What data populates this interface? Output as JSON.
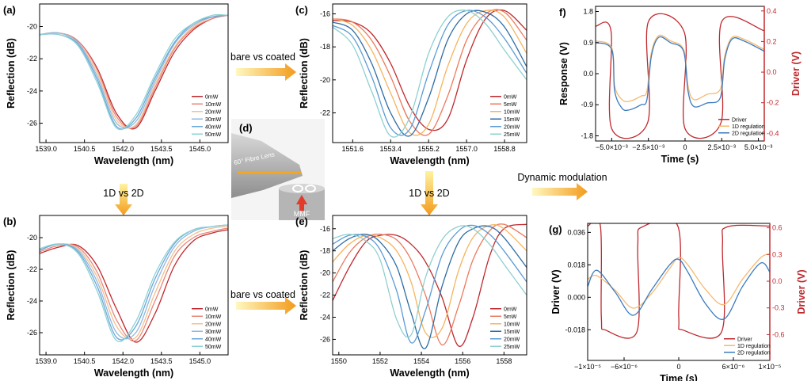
{
  "chart_data": [
    {
      "type": "line",
      "label": "(a)",
      "xlabel": "Wavelength (nm)",
      "ylabel": "Reflection (dB)",
      "legend": "lower right",
      "x": [
        1538.75,
        1539.5,
        1540.25,
        1541,
        1541.75,
        1542.5,
        1543.25,
        1544,
        1544.75,
        1545.5,
        1546.1
      ],
      "xlim": [
        1538.75,
        1546.1
      ],
      "ylim": [
        -27.2,
        -18.6
      ],
      "xticks": [
        {
          "value": 1539,
          "label": "1539.0"
        },
        1540.5,
        {
          "value": 1542,
          "label": "1542.0"
        },
        1543.5,
        {
          "value": 1545,
          "label": "1545.0"
        }
      ],
      "yticks": [
        -26,
        -24,
        -22,
        -20
      ],
      "series": [
        {
          "name": "0mW",
          "color": "#c0282d",
          "values": [
            -20.5,
            -20.4,
            -20.9,
            -22.6,
            -25.4,
            -26.3,
            -24.0,
            -21.6,
            -20.2,
            -19.5,
            -19.3
          ]
        },
        {
          "name": "10mW",
          "color": "#e8867a",
          "values": [
            -20.5,
            -20.4,
            -20.9,
            -22.7,
            -25.6,
            -26.2,
            -23.8,
            -21.4,
            -20.1,
            -19.5,
            -19.3
          ]
        },
        {
          "name": "20mW",
          "color": "#f5c08e",
          "values": [
            -20.5,
            -20.4,
            -21.0,
            -22.9,
            -25.8,
            -26.1,
            -23.6,
            -21.3,
            -20.0,
            -19.4,
            -19.3
          ]
        },
        {
          "name": "30mW",
          "color": "#8fb9e0",
          "values": [
            -20.5,
            -20.4,
            -21.0,
            -23.1,
            -26.0,
            -25.9,
            -23.4,
            -21.1,
            -19.9,
            -19.4,
            -19.3
          ]
        },
        {
          "name": "40mW",
          "color": "#6aa6d8",
          "values": [
            -20.5,
            -20.5,
            -21.1,
            -23.3,
            -26.2,
            -25.7,
            -23.2,
            -21.0,
            -19.8,
            -19.4,
            -19.3
          ]
        },
        {
          "name": "50mW",
          "color": "#8dd2d6",
          "values": [
            -20.5,
            -20.5,
            -21.2,
            -23.5,
            -26.3,
            -25.5,
            -23.0,
            -20.8,
            -19.8,
            -19.3,
            -19.3
          ]
        }
      ]
    },
    {
      "type": "line",
      "label": "(b)",
      "xlabel": "Wavelength (nm)",
      "ylabel": "Reflection (dB)",
      "legend": "lower right",
      "x": [
        1538.75,
        1539.5,
        1540.25,
        1541,
        1541.75,
        1542.5,
        1543.25,
        1544,
        1544.75,
        1545.5,
        1546.1
      ],
      "xlim": [
        1538.75,
        1546.1
      ],
      "ylim": [
        -27.4,
        -18.6
      ],
      "xticks": [
        {
          "value": 1539,
          "label": "1539.0"
        },
        1540.5,
        {
          "value": 1542,
          "label": "1542.0"
        },
        1543.5,
        {
          "value": 1545,
          "label": "1545.0"
        }
      ],
      "yticks": [
        -26,
        -24,
        -22,
        -20
      ],
      "series": [
        {
          "name": "0mW",
          "color": "#c0282d",
          "values": [
            -21.0,
            -20.6,
            -20.5,
            -21.8,
            -24.5,
            -26.6,
            -24.8,
            -21.8,
            -20.2,
            -19.7,
            -19.5
          ]
        },
        {
          "name": "10mW",
          "color": "#e8867a",
          "values": [
            -20.9,
            -20.5,
            -20.6,
            -22.2,
            -25.2,
            -26.5,
            -24.0,
            -21.2,
            -20.0,
            -19.6,
            -19.4
          ]
        },
        {
          "name": "20mW",
          "color": "#f5c08e",
          "values": [
            -20.8,
            -20.4,
            -20.7,
            -22.5,
            -25.6,
            -26.3,
            -23.5,
            -20.9,
            -19.8,
            -19.4,
            -19.3
          ]
        },
        {
          "name": "30mW",
          "color": "#8fb9e0",
          "values": [
            -20.8,
            -20.4,
            -20.8,
            -22.8,
            -26.0,
            -26.0,
            -23.0,
            -20.6,
            -19.6,
            -19.3,
            -19.2
          ]
        },
        {
          "name": "40mW",
          "color": "#6aa6d8",
          "values": [
            -20.8,
            -20.4,
            -20.9,
            -23.1,
            -26.3,
            -25.6,
            -22.6,
            -20.4,
            -19.5,
            -19.3,
            -19.2
          ]
        },
        {
          "name": "50mW",
          "color": "#8dd2d6",
          "values": [
            -20.7,
            -20.4,
            -21.0,
            -23.4,
            -26.5,
            -25.3,
            -22.3,
            -20.3,
            -19.5,
            -19.3,
            -19.2
          ]
        }
      ]
    },
    {
      "type": "line",
      "label": "(c)",
      "xlabel": "Wavelength (nm)",
      "ylabel": "Reflection (dB)",
      "legend": "lower right",
      "x": [
        1550.65,
        1551.6,
        1552.5,
        1553.4,
        1554.3,
        1555.2,
        1556.1,
        1557.0,
        1557.9,
        1558.8,
        1559.85
      ],
      "xlim": [
        1550.65,
        1559.85
      ],
      "ylim": [
        -23.8,
        -15.4
      ],
      "xticks": [
        1551.6,
        1553.4,
        1555.2,
        {
          "value": 1557,
          "label": "1557.0"
        },
        1558.8
      ],
      "yticks": [
        -22,
        -20,
        -18,
        -16
      ],
      "series": [
        {
          "name": "0mW",
          "color": "#c0282d",
          "values": [
            -16.4,
            -16.5,
            -17.2,
            -19.0,
            -21.6,
            -23.0,
            -22.4,
            -18.8,
            -16.3,
            -15.8,
            -17.0
          ]
        },
        {
          "name": "5mW",
          "color": "#ec7a5e",
          "values": [
            -16.3,
            -16.5,
            -17.6,
            -19.8,
            -22.5,
            -23.3,
            -21.0,
            -17.6,
            -16.0,
            -15.9,
            -17.6
          ]
        },
        {
          "name": "10mW",
          "color": "#f5b45e",
          "values": [
            -16.3,
            -16.7,
            -18.2,
            -20.8,
            -23.2,
            -22.7,
            -19.2,
            -16.6,
            -15.8,
            -16.2,
            -18.4
          ]
        },
        {
          "name": "15mW",
          "color": "#2e6ca4",
          "values": [
            -16.5,
            -17.0,
            -19.0,
            -22.0,
            -23.4,
            -21.1,
            -17.6,
            -16.0,
            -15.9,
            -16.8,
            -19.2
          ]
        },
        {
          "name": "20mW",
          "color": "#5b9bd5",
          "values": [
            -16.7,
            -17.4,
            -19.8,
            -22.9,
            -23.0,
            -19.6,
            -16.7,
            -15.8,
            -16.2,
            -17.5,
            -19.6
          ]
        },
        {
          "name": "25mW",
          "color": "#8fd0cf",
          "values": [
            -16.8,
            -17.9,
            -20.7,
            -23.4,
            -22.3,
            -18.4,
            -16.2,
            -15.8,
            -16.6,
            -18.2,
            -20.0
          ]
        }
      ]
    },
    {
      "type": "line",
      "label": "(e)",
      "xlabel": "Wavelength (nm)",
      "ylabel": "Reflection (dB)",
      "legend": "lower right",
      "x": [
        1549.7,
        1550.5,
        1551.3,
        1552,
        1552.8,
        1553.5,
        1554.2,
        1555,
        1555.8,
        1556.5,
        1557.3,
        1558,
        1559.1
      ],
      "xlim": [
        1549.7,
        1559.1
      ],
      "ylim": [
        -27.4,
        -14.8
      ],
      "xticks": [
        1550,
        1552,
        1554,
        1556,
        1558
      ],
      "yticks": [
        -26,
        -24,
        -22,
        -20,
        -18,
        -16
      ],
      "series": [
        {
          "name": "0mW",
          "color": "#c0282d",
          "values": [
            -22.5,
            -19.5,
            -17.2,
            -16.6,
            -16.6,
            -17.4,
            -19.0,
            -22.2,
            -26.6,
            -24.0,
            -18.5,
            -16.0,
            -15.6
          ]
        },
        {
          "name": "5mW",
          "color": "#ec7a5e",
          "values": [
            -20.8,
            -18.2,
            -16.8,
            -16.5,
            -17.0,
            -18.8,
            -22.0,
            -26.5,
            -23.0,
            -18.8,
            -16.2,
            -15.6,
            -16.8
          ]
        },
        {
          "name": "10mW",
          "color": "#f5b45e",
          "values": [
            -19.0,
            -17.4,
            -16.6,
            -16.8,
            -18.0,
            -20.8,
            -25.4,
            -25.0,
            -19.8,
            -16.8,
            -15.7,
            -16.0,
            -18.0
          ]
        },
        {
          "name": "15mW",
          "color": "#2e6ca4",
          "values": [
            -18.0,
            -16.9,
            -16.5,
            -17.2,
            -19.4,
            -23.6,
            -26.8,
            -21.2,
            -17.2,
            -16.0,
            -15.8,
            -16.8,
            -19.5
          ]
        },
        {
          "name": "20mW",
          "color": "#5b9bd5",
          "values": [
            -17.4,
            -16.6,
            -16.7,
            -17.9,
            -21.6,
            -26.3,
            -23.4,
            -18.4,
            -16.2,
            -15.7,
            -16.5,
            -18.0,
            -20.8
          ]
        },
        {
          "name": "25mW",
          "color": "#8fd0cf",
          "values": [
            -16.9,
            -16.5,
            -17.1,
            -18.8,
            -24.2,
            -25.6,
            -20.4,
            -17.0,
            -15.8,
            -16.0,
            -17.4,
            -19.2,
            -22.0
          ]
        }
      ]
    },
    {
      "type": "line",
      "label": "f)",
      "xlabel": "Time (s)",
      "ylabel": "Response (V)",
      "y2label": "Driver (V)",
      "legend": "lower right",
      "xlim": [
        -0.0061,
        0.0054
      ],
      "ylim": [
        -1.95,
        1.95
      ],
      "y2lim": [
        -0.45,
        0.43
      ],
      "xticks": [
        {
          "value": -0.005,
          "label": "−5.0×10⁻³"
        },
        {
          "value": -0.0025,
          "label": "−2.5×10⁻³"
        },
        0,
        {
          "value": 0.0025,
          "label": "2.5×10⁻³"
        },
        {
          "value": 0.005,
          "label": "5.0×10⁻³"
        }
      ],
      "yticks": [
        -1.8,
        -0.9,
        {
          "value": 0,
          "label": "0.0"
        },
        0.9,
        1.8
      ],
      "y2ticks": [
        -0.4,
        -0.2,
        {
          "value": 0,
          "label": "0.0"
        },
        0.2,
        0.4
      ],
      "series": [
        {
          "name": "Driver",
          "color": "#c0282d",
          "axis": "y2",
          "x": [
            -0.0061,
            -0.00505,
            -0.005,
            -0.00255,
            -0.0025,
            -5e-05,
            0,
            0.00245,
            0.0025,
            0.0054
          ],
          "values": [
            0.3,
            0.27,
            -0.37,
            -0.33,
            0.33,
            0.26,
            -0.37,
            -0.33,
            0.33,
            0.27
          ]
        },
        {
          "name": "1D regulation",
          "color": "#f5b971",
          "x": [
            -0.0061,
            -0.005,
            -0.0048,
            -0.0043,
            -0.0038,
            -0.003,
            -0.0026,
            -0.0023,
            -0.0018,
            -0.001,
            -0.0001,
            0.0002,
            0.0006,
            0.0015,
            0.0024,
            0.0027,
            0.0032,
            0.004,
            0.0054
          ],
          "values": [
            0.95,
            0.75,
            -0.35,
            -0.75,
            -0.8,
            -0.65,
            -0.5,
            0.6,
            1.1,
            0.95,
            0.7,
            -0.35,
            -0.75,
            -0.6,
            -0.45,
            0.5,
            1.05,
            1.0,
            0.7
          ]
        },
        {
          "name": "2D regulation",
          "color": "#3b7bbf",
          "x": [
            -0.0061,
            -0.005,
            -0.0048,
            -0.0043,
            -0.0038,
            -0.003,
            -0.0026,
            -0.0023,
            -0.0018,
            -0.001,
            -0.0001,
            0.0002,
            0.0006,
            0.0015,
            0.0024,
            0.0027,
            0.0032,
            0.004,
            0.0054
          ],
          "values": [
            0.9,
            0.7,
            -0.5,
            -1.0,
            -1.05,
            -0.9,
            -0.75,
            0.5,
            1.05,
            0.9,
            0.65,
            -0.5,
            -0.95,
            -0.85,
            -0.7,
            0.4,
            1.0,
            0.95,
            0.65
          ]
        }
      ]
    },
    {
      "type": "line",
      "label": "(g)",
      "xlabel": "Time (s)",
      "ylabel": "Driver (V)",
      "y2label": "Driver (V)",
      "legend": "lower right",
      "xlim": [
        -1e-05,
        1e-05
      ],
      "ylim": [
        -0.035,
        0.041
      ],
      "y2lim": [
        -0.89,
        0.65
      ],
      "xticks": [
        {
          "value": -1e-05,
          "label": "−1×10⁻⁵"
        },
        {
          "value": -6e-06,
          "label": "−6×10⁻⁶"
        },
        0,
        {
          "value": 6e-06,
          "label": "6×10⁻⁶"
        },
        {
          "value": 1e-05,
          "label": "1×10⁻⁵"
        }
      ],
      "yticks": [
        -0.018,
        {
          "value": 0,
          "label": "0.000"
        },
        0.018,
        0.036
      ],
      "y2ticks": [
        -0.6,
        -0.3,
        {
          "value": 0,
          "label": "0.0"
        },
        0.3,
        0.6
      ],
      "series": [
        {
          "name": "Driver",
          "color": "#c0282d",
          "axis": "y2",
          "x": [
            -1e-05,
            -8.6e-06,
            -8.5e-06,
            -8e-06,
            -4.6e-06,
            -4.5e-06,
            -4e-06,
            -1e-07,
            0,
            5e-07,
            4.7e-06,
            4.8e-06,
            5.3e-06,
            1e-05
          ],
          "values": [
            0.62,
            0.62,
            -0.4,
            -0.55,
            -0.57,
            0.4,
            0.61,
            0.62,
            -0.4,
            -0.55,
            -0.57,
            0.4,
            0.61,
            0.62
          ]
        },
        {
          "name": "1D regulation",
          "color": "#f5b971",
          "x": [
            -1e-05,
            -9e-06,
            -7e-06,
            -5e-06,
            -3e-06,
            -1e-06,
            0,
            1e-06,
            3e-06,
            5e-06,
            7e-06,
            9e-06,
            1e-05
          ],
          "values": [
            0.01,
            0.012,
            0.004,
            -0.006,
            0.002,
            0.016,
            0.022,
            0.018,
            0.004,
            -0.004,
            0.01,
            0.022,
            0.024
          ]
        },
        {
          "name": "2D regulation",
          "color": "#3b7bbf",
          "x": [
            -1e-05,
            -9e-06,
            -7e-06,
            -5e-06,
            -3e-06,
            -1e-06,
            0,
            1e-06,
            3e-06,
            5e-06,
            7e-06,
            9e-06,
            1e-05
          ],
          "values": [
            0.006,
            0.015,
            0.003,
            -0.01,
            0.004,
            0.018,
            0.021,
            0.014,
            -0.004,
            -0.012,
            0.006,
            0.019,
            0.014
          ]
        }
      ]
    }
  ],
  "annotations": {
    "arrows": [
      "bare vs coated",
      "1D vs 2D",
      "1D vs 2D",
      "bare vs coated",
      "Dynamic modulation"
    ],
    "panel_d": {
      "label": "(d)",
      "lens": "60° Fibre Lens",
      "fiber": "MMF"
    }
  }
}
